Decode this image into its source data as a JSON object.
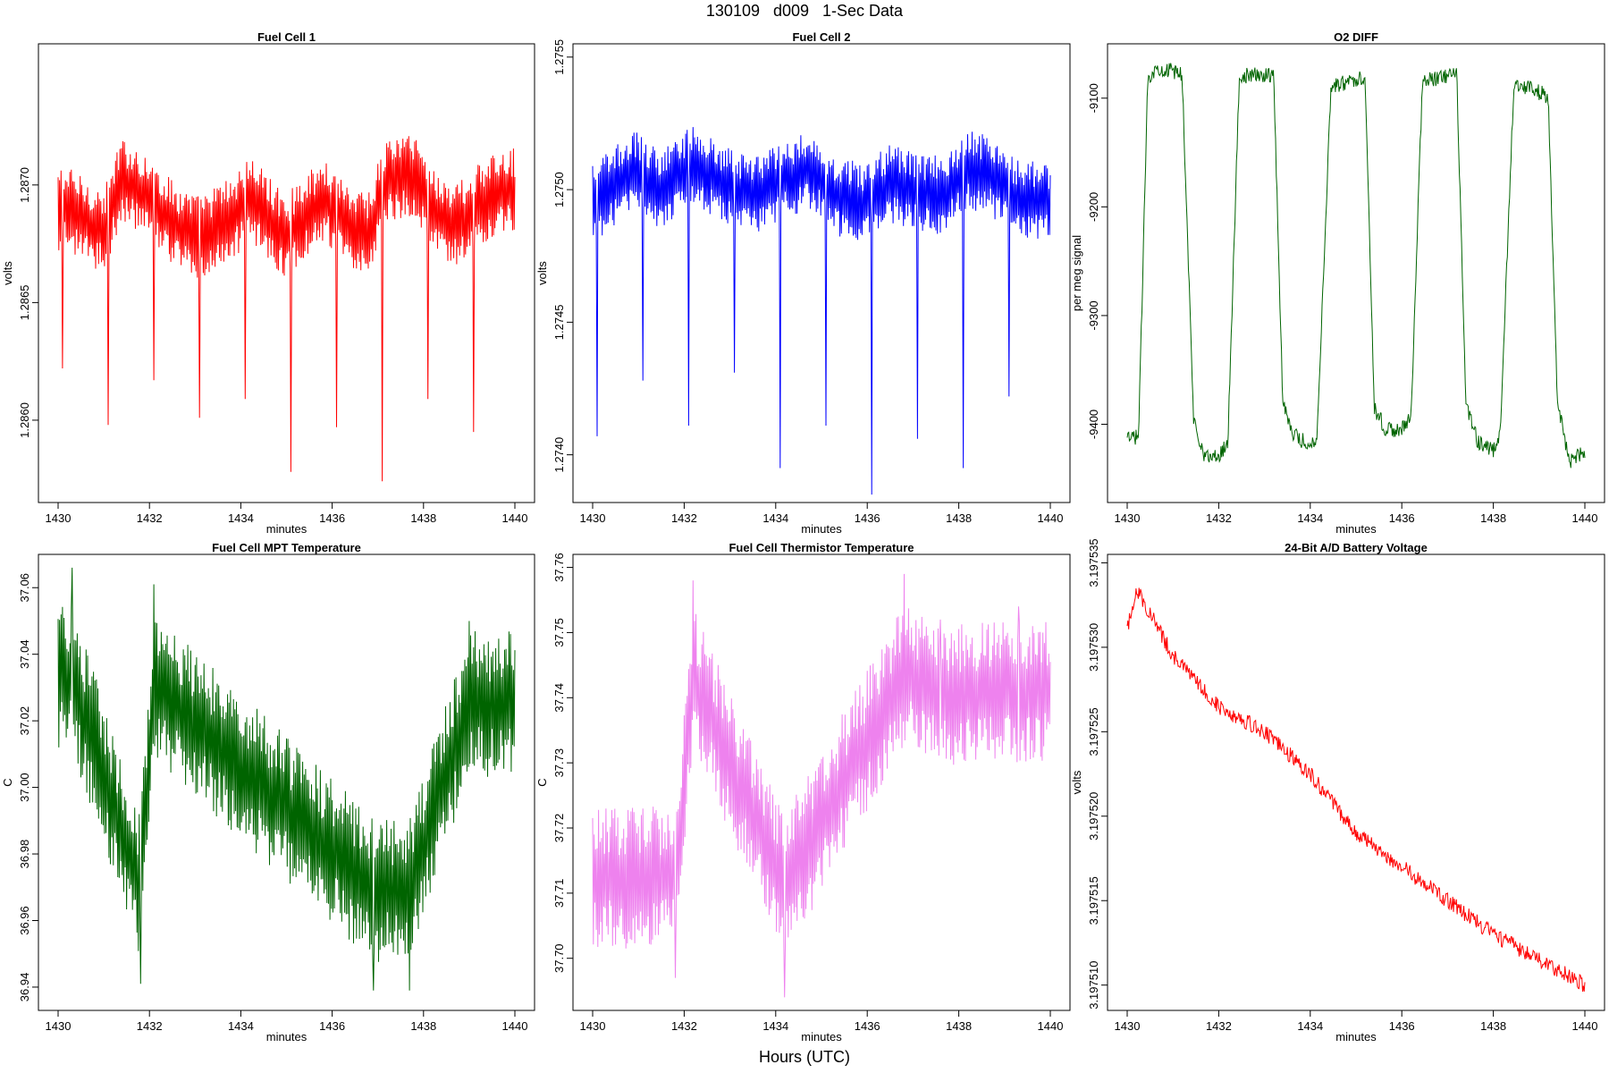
{
  "title": "130109   d009   1-Sec Data",
  "bottom_label": "Hours (UTC)",
  "chart_data": [
    {
      "type": "line",
      "title": "Fuel Cell 1",
      "xlabel": "minutes",
      "ylabel": "volts",
      "color": "#ff0000",
      "xlim": [
        1430,
        1440
      ],
      "ylim": [
        1.28565,
        1.2876
      ],
      "xticks": [
        "1430",
        "1432",
        "1434",
        "1436",
        "1438",
        "1440"
      ],
      "yticks": [
        "1.2860",
        "1.2865",
        "1.2870"
      ],
      "baseline": 1.28685,
      "amplitude": 0.00018,
      "x": [
        1430.2,
        1431.0,
        1431.4,
        1431.8,
        1432.6,
        1433.1,
        1433.9,
        1434.2,
        1435.0,
        1435.4,
        1435.9,
        1436.4,
        1436.8,
        1437.2,
        1437.8,
        1438.3,
        1438.7,
        1439.3,
        1439.8
      ],
      "y": [
        1.28695,
        1.28675,
        1.2872,
        1.2871,
        1.2868,
        1.2867,
        1.2869,
        1.28705,
        1.2867,
        1.2869,
        1.287,
        1.2868,
        1.28675,
        1.2872,
        1.28725,
        1.2869,
        1.2868,
        1.287,
        1.2871
      ],
      "spikes_x": [
        1430.1,
        1431.1,
        1432.1,
        1433.1,
        1434.1,
        1435.1,
        1436.1,
        1437.1,
        1438.1,
        1439.1
      ],
      "spikes_y": [
        1.28622,
        1.28598,
        1.28617,
        1.28601,
        1.28609,
        1.28578,
        1.28597,
        1.28574,
        1.28609,
        1.28595
      ]
    },
    {
      "type": "line",
      "title": "Fuel Cell 2",
      "xlabel": "minutes",
      "ylabel": "volts",
      "color": "#0000ff",
      "xlim": [
        1430,
        1440
      ],
      "ylim": [
        1.27382,
        1.27555
      ],
      "xticks": [
        "1430",
        "1432",
        "1434",
        "1436",
        "1438",
        "1440"
      ],
      "yticks": [
        "1.2740",
        "1.2745",
        "1.2750",
        "1.2755"
      ],
      "baseline": 1.275,
      "amplitude": 0.00015,
      "x": [
        1430.2,
        1430.9,
        1431.5,
        1432.2,
        1432.8,
        1433.5,
        1434.0,
        1434.8,
        1435.3,
        1435.9,
        1436.5,
        1437.0,
        1437.6,
        1438.2,
        1438.7,
        1439.2,
        1439.8
      ],
      "y": [
        1.27495,
        1.27515,
        1.275,
        1.2752,
        1.27505,
        1.27495,
        1.27505,
        1.27515,
        1.27495,
        1.2749,
        1.27505,
        1.275,
        1.27495,
        1.27515,
        1.2751,
        1.27495,
        1.2749
      ],
      "spikes_x": [
        1430.1,
        1431.1,
        1432.1,
        1433.1,
        1434.1,
        1435.1,
        1436.1,
        1437.1,
        1438.1,
        1439.1
      ],
      "spikes_y": [
        1.27407,
        1.27428,
        1.27411,
        1.27431,
        1.27395,
        1.27411,
        1.27385,
        1.27406,
        1.27395,
        1.27422
      ]
    },
    {
      "type": "line",
      "title": "O2 DIFF",
      "xlabel": "minutes",
      "ylabel": "per meg signal",
      "color": "#006400",
      "xlim": [
        1430,
        1440
      ],
      "ylim": [
        -9472,
        -9050
      ],
      "xticks": [
        "1430",
        "1432",
        "1434",
        "1436",
        "1438",
        "1440"
      ],
      "yticks": [
        "-9400",
        "-9300",
        "-9200",
        "-9100"
      ],
      "x": [
        1430.0,
        1430.25,
        1430.45,
        1430.7,
        1431.2,
        1431.45,
        1431.7,
        1432.0,
        1432.2,
        1432.45,
        1433.2,
        1433.4,
        1433.65,
        1434.0,
        1434.15,
        1434.45,
        1435.2,
        1435.4,
        1435.65,
        1436.0,
        1436.2,
        1436.45,
        1437.2,
        1437.4,
        1437.65,
        1438.0,
        1438.15,
        1438.45,
        1439.2,
        1439.4,
        1439.65,
        1440.0
      ],
      "y": [
        -9415,
        -9410,
        -9080,
        -9072,
        -9078,
        -9395,
        -9430,
        -9430,
        -9415,
        -9080,
        -9078,
        -9380,
        -9410,
        -9420,
        -9410,
        -9090,
        -9080,
        -9385,
        -9405,
        -9405,
        -9395,
        -9085,
        -9078,
        -9380,
        -9415,
        -9425,
        -9410,
        -9085,
        -9098,
        -9380,
        -9435,
        -9425
      ]
    },
    {
      "type": "line",
      "title": "Fuel Cell MPT Temperature",
      "xlabel": "minutes",
      "ylabel": "C",
      "color": "#006400",
      "xlim": [
        1430,
        1440
      ],
      "ylim": [
        36.933,
        37.07
      ],
      "xticks": [
        "1430",
        "1432",
        "1434",
        "1436",
        "1438",
        "1440"
      ],
      "yticks": [
        "36.94",
        "36.96",
        "36.98",
        "37.00",
        "37.02",
        "37.04",
        "37.06"
      ],
      "baseline": 37.0,
      "amplitude": 0.022,
      "x": [
        1430.3,
        1431.8,
        1432.1,
        1436.9,
        1437.7,
        1439.0
      ],
      "y": [
        37.066,
        36.941,
        37.061,
        36.939,
        36.939,
        37.05
      ]
    },
    {
      "type": "line",
      "title": "Fuel Cell Thermistor Temperature",
      "xlabel": "minutes",
      "ylabel": "C",
      "color": "#ee82ee",
      "xlim": [
        1430,
        1440
      ],
      "ylim": [
        37.692,
        37.762
      ],
      "xticks": [
        "1430",
        "1432",
        "1434",
        "1436",
        "1438",
        "1440"
      ],
      "yticks": [
        "37.70",
        "37.71",
        "37.72",
        "37.73",
        "37.74",
        "37.75",
        "37.76"
      ],
      "baseline": 37.728,
      "amplitude": 0.011,
      "x": [
        1431.8,
        1432.2,
        1434.2,
        1436.8,
        1437.6,
        1439.3
      ],
      "y": [
        37.697,
        37.758,
        37.694,
        37.759,
        37.752,
        37.754
      ]
    },
    {
      "type": "line",
      "title": "24-Bit A/D Battery Voltage",
      "xlabel": "minutes",
      "ylabel": "volts",
      "color": "#ff0000",
      "xlim": [
        1430,
        1440
      ],
      "ylim": [
        3.1975085,
        3.1975355
      ],
      "xticks": [
        "1430",
        "1432",
        "1434",
        "1436",
        "1438",
        "1440"
      ],
      "yticks": [
        "3.197510",
        "3.197515",
        "3.197520",
        "3.197525",
        "3.197530",
        "3.197535"
      ],
      "x": [
        1430.0,
        1430.2,
        1431.0,
        1432.0,
        1433.0,
        1434.0,
        1435.0,
        1436.0,
        1437.0,
        1438.0,
        1439.0,
        1440.0
      ],
      "y": [
        3.197531,
        3.1975335,
        3.1975295,
        3.1975265,
        3.197525,
        3.1975225,
        3.197519,
        3.197517,
        3.197515,
        3.197513,
        3.1975115,
        3.19751
      ]
    }
  ]
}
